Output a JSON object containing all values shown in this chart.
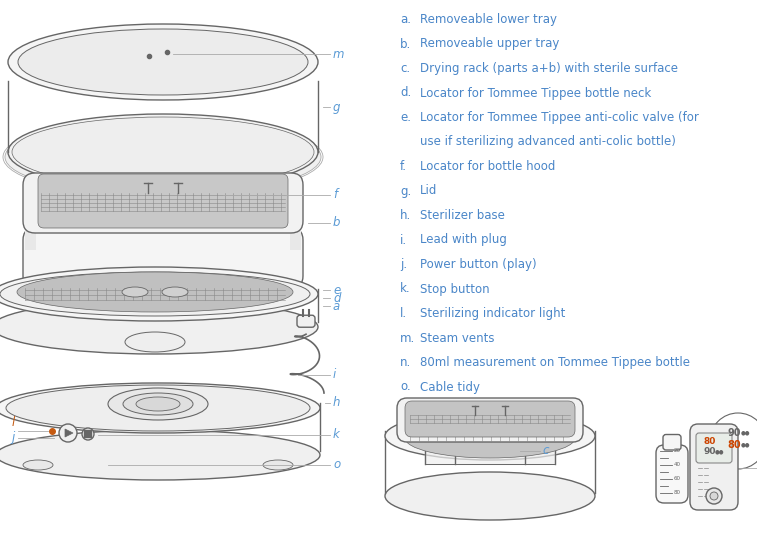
{
  "bg_color": "#ffffff",
  "letter_color": "#5b9bd5",
  "text_color": "#4a86c8",
  "orange_color": "#c55a11",
  "draw_color": "#666666",
  "draw_lw": 1.0,
  "label_lw": 0.6,
  "label_color": "#aaaaaa",
  "legend": [
    [
      "a.",
      "Removeable lower tray"
    ],
    [
      "b.",
      "Removeable upper tray"
    ],
    [
      "c.",
      "Drying rack (parts a+b) with sterile surface"
    ],
    [
      "d.",
      "Locator for Tommee Tippee bottle neck"
    ],
    [
      "e.",
      "Locator for Tommee Tippee anti-colic valve (for"
    ],
    [
      "",
      "use if sterilizing advanced anti-colic bottle)"
    ],
    [
      "f.",
      "Locator for bottle hood"
    ],
    [
      "g.",
      "Lid"
    ],
    [
      "h.",
      "Sterilizer base"
    ],
    [
      "i.",
      "Lead with plug"
    ],
    [
      "j.",
      "Power button (play)"
    ],
    [
      "k.",
      "Stop button"
    ],
    [
      "l.",
      "Sterilizing indicator light"
    ],
    [
      "m.",
      "Steam vents"
    ],
    [
      "n.",
      "80ml measurement on Tommee Tippee bottle"
    ],
    [
      "o.",
      "Cable tidy"
    ]
  ],
  "figsize": [
    7.57,
    5.56
  ],
  "dpi": 100
}
